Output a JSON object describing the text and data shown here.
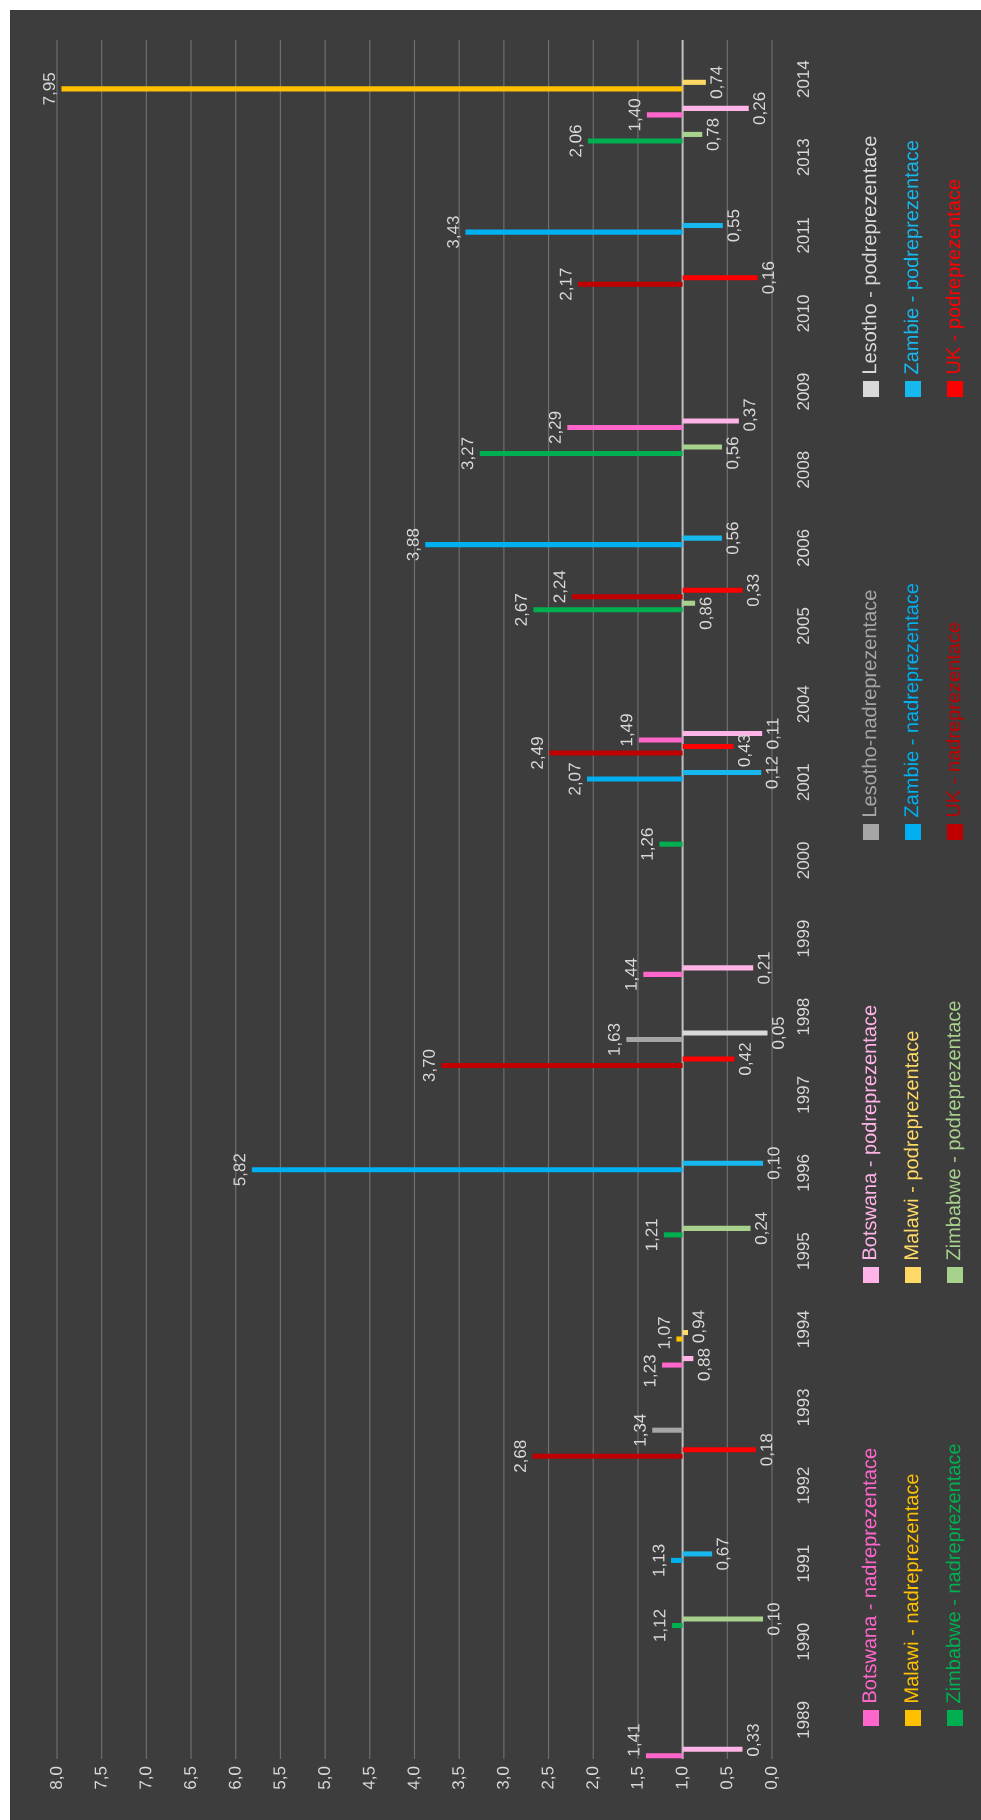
{
  "chart_data": {
    "type": "bar",
    "orientation": "horizontal",
    "categories": [
      "2014",
      "2013",
      "2011",
      "2010",
      "2009",
      "2008",
      "2006",
      "2005",
      "2004",
      "2001",
      "2000",
      "1999",
      "1998",
      "1997",
      "1996",
      "1995",
      "1994",
      "1993",
      "1992",
      "1991",
      "1990",
      "1989"
    ],
    "xlim": [
      8,
      0
    ],
    "xticks": [
      {
        "value": 8,
        "label": "8,0"
      },
      {
        "value": 7.5,
        "label": "7,5"
      },
      {
        "value": 7,
        "label": "7,0"
      },
      {
        "value": 6.5,
        "label": "6,5"
      },
      {
        "value": 6,
        "label": "6,0"
      },
      {
        "value": 5.5,
        "label": "5,5"
      },
      {
        "value": 5,
        "label": "5,0"
      },
      {
        "value": 4.5,
        "label": "4,5"
      },
      {
        "value": 4,
        "label": "4,0"
      },
      {
        "value": 3.5,
        "label": "3,5"
      },
      {
        "value": 3,
        "label": "3,0"
      },
      {
        "value": 2.5,
        "label": "2,5"
      },
      {
        "value": 2,
        "label": "2,0"
      },
      {
        "value": 1.5,
        "label": "1,5"
      },
      {
        "value": 1,
        "label": "1,0"
      },
      {
        "value": 0.5,
        "label": "0,5"
      },
      {
        "value": 0,
        "label": "0,0"
      }
    ],
    "ref_lines": [
      {
        "axis": "x",
        "value": 1,
        "color": "#bfbfbf"
      }
    ],
    "grid": "x",
    "legend": "right",
    "series": [
      {
        "name": "Botswana - nadreprezentace",
        "color": "#ff66cc",
        "base": [
          1,
          null,
          null,
          null,
          1,
          null,
          null,
          null,
          1,
          null,
          null,
          1,
          null,
          null,
          null,
          null,
          1,
          null,
          null,
          null,
          null,
          1
        ],
        "values": [
          0.4,
          null,
          null,
          null,
          1.29,
          null,
          null,
          null,
          0.49,
          null,
          null,
          0.44,
          null,
          null,
          null,
          null,
          0.23,
          null,
          null,
          null,
          null,
          0.41
        ],
        "value_labels": [
          "1,40",
          null,
          null,
          null,
          "2,29",
          null,
          null,
          null,
          "1,49",
          null,
          null,
          "1,44",
          null,
          null,
          null,
          null,
          "1,23",
          null,
          null,
          null,
          null,
          "1,41"
        ]
      },
      {
        "name": "Botswana - podreprezentace",
        "color": "#ffb3e6",
        "base": [
          1,
          null,
          null,
          null,
          1,
          null,
          null,
          null,
          1,
          null,
          null,
          1,
          null,
          null,
          null,
          null,
          1,
          null,
          null,
          null,
          null,
          1
        ],
        "values": [
          -0.74,
          null,
          null,
          null,
          -0.63,
          null,
          null,
          null,
          -0.89,
          null,
          null,
          -0.79,
          null,
          null,
          null,
          null,
          -0.12,
          null,
          null,
          null,
          null,
          -0.67
        ],
        "value_labels": [
          "0,26",
          null,
          null,
          null,
          "0,37",
          null,
          null,
          null,
          "0,11",
          null,
          null,
          "0,21",
          null,
          null,
          null,
          null,
          "0,88",
          null,
          null,
          null,
          null,
          "0,33"
        ]
      },
      {
        "name": "Lesotho-nadreprezentace",
        "color": "#a6a6a6",
        "base": [
          null,
          null,
          null,
          null,
          null,
          null,
          null,
          null,
          null,
          null,
          null,
          null,
          1,
          null,
          null,
          null,
          null,
          1,
          null,
          null,
          null,
          null
        ],
        "values": [
          null,
          null,
          null,
          null,
          null,
          null,
          null,
          null,
          null,
          null,
          null,
          null,
          0.63,
          null,
          null,
          null,
          null,
          0.34,
          null,
          null,
          null,
          null
        ],
        "value_labels": [
          null,
          null,
          null,
          null,
          null,
          null,
          null,
          null,
          null,
          null,
          null,
          null,
          "1,63",
          null,
          null,
          null,
          null,
          "1,34",
          null,
          null,
          null,
          null
        ]
      },
      {
        "name": "Lesotho - podreprezentace",
        "color": "#d9d9d9",
        "base": [
          null,
          null,
          null,
          null,
          null,
          null,
          null,
          null,
          null,
          null,
          null,
          null,
          1,
          null,
          null,
          null,
          null,
          null,
          null,
          null,
          null,
          null
        ],
        "values": [
          null,
          null,
          null,
          null,
          null,
          null,
          null,
          null,
          null,
          null,
          null,
          null,
          -0.95,
          null,
          null,
          null,
          null,
          null,
          null,
          null,
          null,
          null
        ],
        "value_labels": [
          null,
          null,
          null,
          null,
          null,
          null,
          null,
          null,
          null,
          null,
          null,
          null,
          "0,05",
          null,
          null,
          null,
          null,
          null,
          null,
          null,
          null,
          null
        ]
      },
      {
        "name": "Malawi - nadreprezentace",
        "color": "#ffc000",
        "base": [
          1,
          null,
          null,
          null,
          null,
          null,
          null,
          null,
          null,
          null,
          null,
          null,
          null,
          null,
          null,
          null,
          1,
          null,
          null,
          null,
          null,
          null
        ],
        "values": [
          6.95,
          null,
          null,
          null,
          null,
          null,
          null,
          null,
          null,
          null,
          null,
          null,
          null,
          null,
          null,
          null,
          0.07,
          null,
          null,
          null,
          null,
          null
        ],
        "value_labels": [
          "7,95",
          null,
          null,
          null,
          null,
          null,
          null,
          null,
          null,
          null,
          null,
          null,
          null,
          null,
          null,
          null,
          "1,07",
          null,
          null,
          null,
          null,
          null
        ]
      },
      {
        "name": "Malawi - podreprezentace",
        "color": "#ffd966",
        "base": [
          1,
          null,
          null,
          null,
          null,
          null,
          null,
          null,
          null,
          null,
          null,
          null,
          null,
          null,
          null,
          null,
          1,
          null,
          null,
          null,
          null,
          null
        ],
        "values": [
          -0.26,
          null,
          null,
          null,
          null,
          null,
          null,
          null,
          null,
          null,
          null,
          null,
          null,
          null,
          null,
          null,
          -0.06,
          null,
          null,
          null,
          null,
          null
        ],
        "value_labels": [
          "0,74",
          null,
          null,
          null,
          null,
          null,
          null,
          null,
          null,
          null,
          null,
          null,
          null,
          null,
          null,
          null,
          "0,94",
          null,
          null,
          null,
          null,
          null
        ]
      },
      {
        "name": "Zambie - nadreprezentace",
        "color": "#00b0f0",
        "base": [
          null,
          null,
          1,
          null,
          null,
          null,
          1,
          null,
          null,
          1,
          null,
          null,
          null,
          null,
          1,
          null,
          null,
          null,
          null,
          1,
          null,
          null
        ],
        "values": [
          null,
          null,
          2.43,
          null,
          null,
          null,
          2.88,
          null,
          null,
          1.07,
          null,
          null,
          null,
          null,
          4.82,
          null,
          null,
          null,
          null,
          0.13,
          null,
          null
        ],
        "value_labels": [
          null,
          null,
          "3,43",
          null,
          null,
          null,
          "3,88",
          null,
          null,
          "2,07",
          null,
          null,
          null,
          null,
          "5,82",
          null,
          null,
          null,
          null,
          "1,13",
          null,
          null
        ]
      },
      {
        "name": "Zambie - podreprezentace",
        "color": "#17b8ee",
        "base": [
          null,
          null,
          1,
          null,
          null,
          null,
          1,
          null,
          null,
          1,
          null,
          null,
          null,
          null,
          1,
          null,
          null,
          null,
          null,
          1,
          null,
          null
        ],
        "values": [
          null,
          null,
          -0.45,
          null,
          null,
          null,
          -0.44,
          null,
          null,
          -0.88,
          null,
          null,
          null,
          null,
          -0.9,
          null,
          null,
          null,
          null,
          -0.33,
          null,
          null
        ],
        "value_labels": [
          null,
          null,
          "0,55",
          null,
          null,
          null,
          "0,56",
          null,
          null,
          "0,12",
          null,
          null,
          null,
          null,
          "0,10",
          null,
          null,
          null,
          null,
          "0,67",
          null,
          null
        ]
      },
      {
        "name": "Zimbabwe - nadreprezentace",
        "color": "#00b050",
        "base": [
          null,
          1,
          null,
          null,
          null,
          1,
          null,
          1,
          null,
          null,
          1,
          null,
          null,
          null,
          null,
          1,
          null,
          null,
          null,
          null,
          1,
          null
        ],
        "values": [
          null,
          1.06,
          null,
          null,
          null,
          2.27,
          null,
          1.67,
          null,
          null,
          0.26,
          null,
          null,
          null,
          null,
          0.21,
          null,
          null,
          null,
          null,
          0.12,
          null
        ],
        "value_labels": [
          null,
          "2,06",
          null,
          null,
          null,
          "3,27",
          null,
          "2,67",
          null,
          null,
          "1,26",
          null,
          null,
          null,
          null,
          "1,21",
          null,
          null,
          null,
          null,
          "1,12",
          null
        ]
      },
      {
        "name": "Zimbabwe - podreprezentace",
        "color": "#a9d18e",
        "base": [
          null,
          1,
          null,
          null,
          null,
          1,
          null,
          1,
          null,
          null,
          null,
          null,
          null,
          null,
          null,
          1,
          null,
          null,
          null,
          null,
          1,
          null
        ],
        "values": [
          null,
          -0.22,
          null,
          null,
          null,
          -0.44,
          null,
          -0.14,
          null,
          null,
          null,
          null,
          null,
          null,
          null,
          -0.76,
          null,
          null,
          null,
          null,
          -0.9,
          null
        ],
        "value_labels": [
          null,
          "0,78",
          null,
          null,
          null,
          "0,56",
          null,
          "0,86",
          null,
          null,
          null,
          null,
          null,
          null,
          null,
          "0,24",
          null,
          null,
          null,
          null,
          "0,10",
          null
        ]
      },
      {
        "name": "UK - nadreprezentace",
        "color": "#c00000",
        "base": [
          null,
          null,
          null,
          1,
          null,
          null,
          null,
          1,
          null,
          1,
          null,
          null,
          null,
          1,
          null,
          null,
          null,
          null,
          1,
          null,
          null,
          null
        ],
        "values": [
          null,
          null,
          null,
          1.17,
          null,
          null,
          null,
          1.24,
          null,
          1.49,
          null,
          null,
          null,
          2.7,
          null,
          null,
          null,
          null,
          1.68,
          null,
          null,
          null
        ],
        "value_labels": [
          null,
          null,
          null,
          "2,17",
          null,
          null,
          null,
          "2,24",
          null,
          "2,49",
          null,
          null,
          null,
          "3,70",
          null,
          null,
          null,
          null,
          "2,68",
          null,
          null,
          null
        ]
      },
      {
        "name": "UK - podreprezentace",
        "color": "#ff0000",
        "base": [
          null,
          null,
          null,
          1,
          null,
          null,
          null,
          1,
          null,
          1,
          null,
          null,
          null,
          1,
          null,
          null,
          null,
          null,
          1,
          null,
          null,
          null
        ],
        "values": [
          null,
          null,
          null,
          -0.84,
          null,
          null,
          null,
          -0.67,
          null,
          -0.57,
          null,
          null,
          null,
          -0.58,
          null,
          null,
          null,
          null,
          -0.82,
          null,
          null,
          null
        ],
        "value_labels": [
          null,
          null,
          null,
          "0,16",
          null,
          null,
          null,
          "0,33",
          null,
          "0,43",
          null,
          null,
          null,
          "0,42",
          null,
          null,
          null,
          null,
          "0,18",
          null,
          null,
          null
        ]
      }
    ]
  }
}
